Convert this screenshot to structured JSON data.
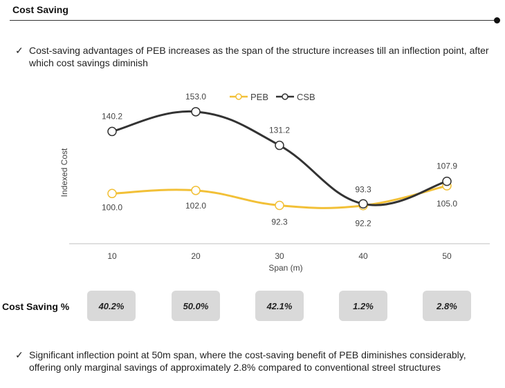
{
  "header": {
    "title": "Cost Saving"
  },
  "bullets": {
    "top": "Cost-saving advantages of PEB increases as the span of the structure increases till an inflection point, after which cost savings diminish",
    "bottom": "Significant inflection point at 50m span, where the cost-saving benefit of PEB diminishes considerably, offering only marginal savings of approximately 2.8% compared to conventional streel structures",
    "check_glyph": "✓"
  },
  "chart_data": {
    "type": "line",
    "categories": [
      "10",
      "20",
      "30",
      "40",
      "50"
    ],
    "xlabel": "Span (m)",
    "ylabel": "Indexed Cost",
    "ylim": [
      80,
      165
    ],
    "grid": false,
    "legend": "top-center",
    "series": [
      {
        "name": "PEB",
        "values": [
          100.0,
          102.0,
          92.3,
          92.2,
          105.0
        ],
        "labels": [
          "100.0",
          "102.0",
          "92.3",
          "92.2",
          "105.0"
        ],
        "color": "#f2c037"
      },
      {
        "name": "CSB",
        "values": [
          140.2,
          153.0,
          131.2,
          93.3,
          107.9
        ],
        "labels": [
          "140.2",
          "153.0",
          "131.2",
          "93.3",
          "107.9"
        ],
        "color": "#333333"
      }
    ]
  },
  "cost_saving": {
    "label": "Cost Saving %",
    "values": [
      "40.2%",
      "50.0%",
      "42.1%",
      "1.2%",
      "2.8%"
    ]
  }
}
